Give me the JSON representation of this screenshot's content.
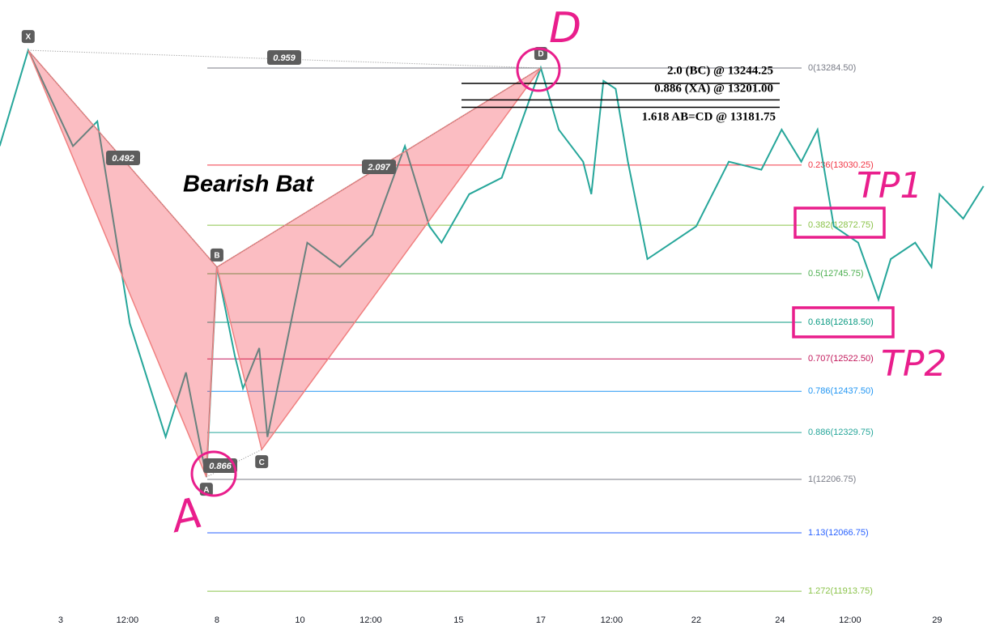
{
  "chart_data": {
    "type": "line",
    "title": "Bearish Bat",
    "color": "#26a69a",
    "x": [
      -0.75,
      -0.4,
      0.15,
      0.45,
      0.85,
      1.29,
      1.54,
      1.79,
      1.92,
      2.14,
      2.24,
      2.44,
      2.54,
      3.03,
      3.43,
      3.83,
      4.23,
      4.53,
      4.68,
      5.02,
      5.42,
      5.9,
      6.12,
      6.42,
      6.52,
      6.67,
      6.82,
      6.97,
      7.21,
      7.51,
      7.81,
      8.21,
      8.61,
      8.86,
      9.1,
      9.3,
      9.5,
      9.8,
      10.05,
      10.2,
      10.5,
      10.7,
      10.8,
      11.09,
      11.34
    ],
    "values": [
      13080,
      13331,
      13080,
      13145,
      12615,
      12318,
      12487,
      12213,
      12763,
      12530,
      12445,
      12551,
      12318,
      12827,
      12763,
      12848,
      13080,
      12870,
      12827,
      12954,
      12997,
      13285,
      13123,
      13039,
      12954,
      13251,
      13230,
      13039,
      12784,
      12827,
      12870,
      13039,
      13018,
      13123,
      13039,
      13123,
      12870,
      12827,
      12678,
      12784,
      12827,
      12763,
      12954,
      12890,
      12975
    ],
    "xlim": [
      -0.746,
      11.383
    ],
    "ylim": [
      11812.3,
      13462.7
    ],
    "xticks": [
      {
        "value": 0,
        "label": "3"
      },
      {
        "value": 0.82,
        "label": "12:00"
      },
      {
        "value": 1.92,
        "label": "8"
      },
      {
        "value": 2.94,
        "label": "10"
      },
      {
        "value": 3.81,
        "label": "12:00"
      },
      {
        "value": 4.89,
        "label": "15"
      },
      {
        "value": 5.9,
        "label": "17"
      },
      {
        "value": 6.77,
        "label": "12:00"
      },
      {
        "value": 7.81,
        "label": "22"
      },
      {
        "value": 8.84,
        "label": "24"
      },
      {
        "value": 9.7,
        "label": "12:00"
      },
      {
        "value": 10.77,
        "label": "29"
      }
    ],
    "pattern_points": [
      {
        "label": "X",
        "x": -0.4,
        "y": 13331
      },
      {
        "label": "A",
        "x": 1.79,
        "y": 12213
      },
      {
        "label": "B",
        "x": 1.92,
        "y": 12763
      },
      {
        "label": "C",
        "x": 2.47,
        "y": 12285
      },
      {
        "label": "D",
        "x": 5.9,
        "y": 13284.5
      }
    ],
    "pattern_ratios": [
      0.959,
      0.492,
      2.097,
      0.866
    ],
    "harmonic_levels": [
      {
        "label": "2.0 (BC) @ 13244.25",
        "price": 13244.25
      },
      {
        "label": "0.886 (XA) @ 13201.00",
        "price": 13201.0
      },
      {
        "label": "1.618 AB=CD @ 13181.75",
        "price": 13181.75
      }
    ],
    "fib_levels": [
      {
        "label": "0(13284.50)",
        "price": 13284.5,
        "color": "#787b86"
      },
      {
        "label": "0.236(13030.25)",
        "price": 13030.25,
        "color": "#f23645"
      },
      {
        "label": "0.382(12872.75)",
        "price": 12872.75,
        "color": "#8bc34a"
      },
      {
        "label": "0.5(12745.75)",
        "price": 12745.75,
        "color": "#4caf50"
      },
      {
        "label": "0.618(12618.50)",
        "price": 12618.5,
        "color": "#089981"
      },
      {
        "label": "0.707(12522.50)",
        "price": 12522.5,
        "color": "#c2185b"
      },
      {
        "label": "0.786(12437.50)",
        "price": 12437.5,
        "color": "#2196f3"
      },
      {
        "label": "0.886(12329.75)",
        "price": 12329.75,
        "color": "#26a69a"
      },
      {
        "label": "1(12206.75)",
        "price": 12206.75,
        "color": "#787b86"
      },
      {
        "label": "1.13(12066.75)",
        "price": 12066.75,
        "color": "#2962ff"
      },
      {
        "label": "1.272(11913.75)",
        "price": 11913.75,
        "color": "#8bc34a"
      }
    ],
    "handwritten": {
      "d": "D",
      "a": "A",
      "tp1": "TP1",
      "tp2": "TP2"
    }
  }
}
